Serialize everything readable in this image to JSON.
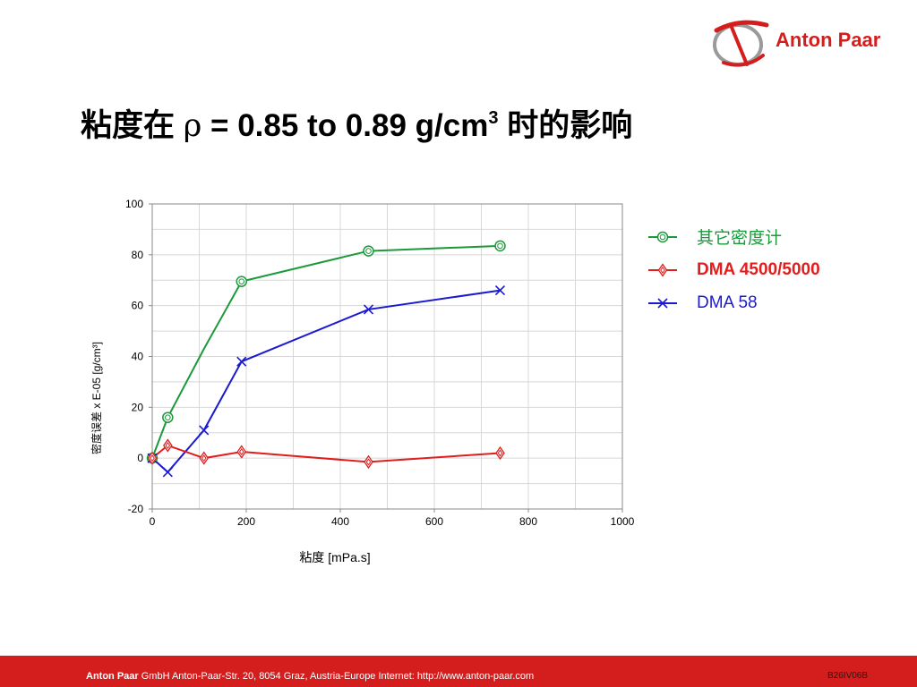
{
  "logo": {
    "brand": "Anton Paar"
  },
  "slide": {
    "title_prefix": "粘度在 ",
    "title_rho": "ρ",
    "title_main": " = 0.85 to 0.89 g/cm",
    "title_sup": "3",
    "title_suffix": " 时的影响"
  },
  "chart_data": {
    "type": "line",
    "xlabel": "粘度 [mPa.s]",
    "ylabel": "密度误差 x E-05 [g/cm³]",
    "xlim": [
      0,
      1000
    ],
    "ylim": [
      -20,
      100
    ],
    "x_ticks": [
      0,
      200,
      400,
      600,
      800,
      1000
    ],
    "y_ticks": [
      -20,
      0,
      20,
      40,
      60,
      80,
      100
    ],
    "grid": true,
    "legend_position": "right",
    "series": [
      {
        "name": "其它密度计",
        "color": "#1a9a3a",
        "marker": "circle",
        "points": [
          [
            0,
            0
          ],
          [
            33,
            16
          ],
          [
            110,
            43
          ],
          [
            190,
            69.5
          ],
          [
            460,
            81.5
          ],
          [
            740,
            83.5
          ]
        ],
        "marked": [
          0,
          1,
          3,
          4,
          5
        ]
      },
      {
        "name": "DMA 4500/5000",
        "color": "#e01e1e",
        "marker": "diamond",
        "bold": true,
        "points": [
          [
            0,
            0
          ],
          [
            33,
            5
          ],
          [
            110,
            0
          ],
          [
            190,
            2.5
          ],
          [
            460,
            -1.5
          ],
          [
            740,
            2
          ]
        ],
        "marked": [
          0,
          1,
          2,
          3,
          4,
          5
        ]
      },
      {
        "name": "DMA 58",
        "color": "#1a1ad0",
        "marker": "x",
        "points": [
          [
            0,
            0
          ],
          [
            33,
            -5.5
          ],
          [
            110,
            11
          ],
          [
            190,
            38
          ],
          [
            460,
            58.5
          ],
          [
            740,
            66
          ]
        ],
        "marked": [
          0,
          1,
          2,
          3,
          4,
          5
        ]
      }
    ]
  },
  "footer": {
    "brand": "Anton Paar",
    "text": " GmbH   Anton-Paar-Str. 20, 8054 Graz, Austria-Europe   Internet: http://www.anton-paar.com",
    "code": "B26IV06B"
  }
}
